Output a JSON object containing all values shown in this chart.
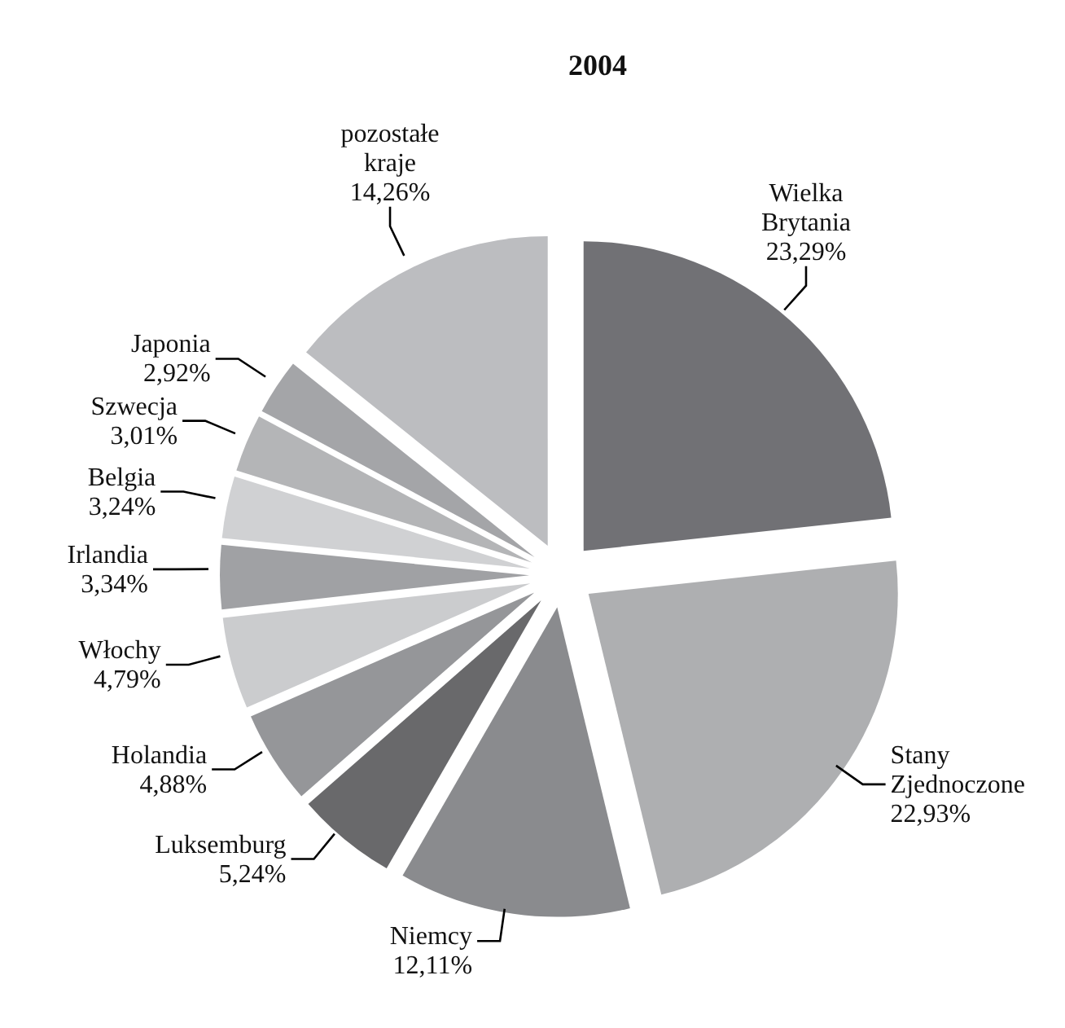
{
  "chart_data": {
    "type": "pie",
    "title": "2004",
    "categories": [
      "Wielka Brytania",
      "Stany Zjednoczone",
      "Niemcy",
      "Luksemburg",
      "Holandia",
      "Włochy",
      "Irlandia",
      "Belgia",
      "Szwecja",
      "Japonia",
      "pozostałe kraje"
    ],
    "values": [
      23.29,
      22.93,
      12.11,
      5.24,
      4.88,
      4.79,
      3.34,
      3.24,
      3.01,
      2.92,
      14.26
    ],
    "value_labels": [
      "23,29%",
      "22,93%",
      "12,11%",
      "5,24%",
      "4,88%",
      "4,79%",
      "3,34%",
      "3,24%",
      "3,01%",
      "2,92%",
      "14,26%"
    ],
    "colors": [
      "#717175",
      "#aeafb1",
      "#8a8b8e",
      "#69696b",
      "#959699",
      "#cbccce",
      "#a0a1a4",
      "#d0d1d3",
      "#b4b5b7",
      "#a4a5a8",
      "#bcbdc0"
    ],
    "legend": false
  }
}
